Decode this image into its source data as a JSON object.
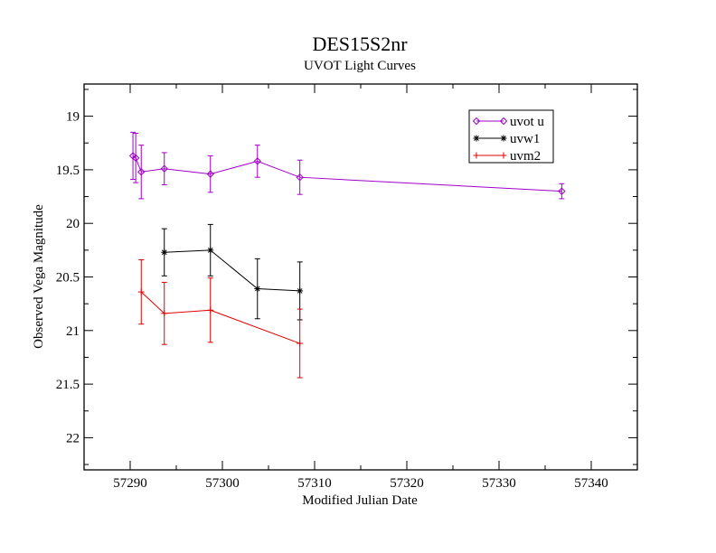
{
  "chart_data": {
    "type": "line",
    "title": "DES15S2nr",
    "subtitle": "UVOT Light Curves",
    "xlabel": "Modified Julian Date",
    "ylabel": "Observed Vega Magnitude",
    "xlim": [
      57285,
      57345
    ],
    "ylim": [
      22.3,
      18.7
    ],
    "y_inverted": true,
    "x_ticks": [
      57290,
      57300,
      57310,
      57320,
      57330,
      57340
    ],
    "y_ticks": [
      19,
      19.5,
      20,
      20.5,
      21,
      21.5,
      22
    ],
    "x_tick_labels": [
      "57290",
      "57300",
      "57310",
      "57320",
      "57330",
      "57340"
    ],
    "y_tick_labels": [
      "19",
      "19.5",
      "20",
      "20.5",
      "21",
      "21.5",
      "22"
    ],
    "grid": false,
    "legend_position": "top-right",
    "series": [
      {
        "name": "uvot u",
        "color": "#a000c8",
        "marker": "diamond",
        "points": [
          {
            "x": 57290.3,
            "y": 19.37,
            "err": 0.22
          },
          {
            "x": 57290.6,
            "y": 19.39,
            "err": 0.23
          },
          {
            "x": 57291.2,
            "y": 19.52,
            "err": 0.25
          },
          {
            "x": 57293.7,
            "y": 19.49,
            "err": 0.15
          },
          {
            "x": 57298.7,
            "y": 19.54,
            "err": 0.17
          },
          {
            "x": 57303.8,
            "y": 19.42,
            "err": 0.15
          },
          {
            "x": 57308.4,
            "y": 19.57,
            "err": 0.16
          },
          {
            "x": 57336.8,
            "y": 19.7,
            "err": 0.07
          }
        ]
      },
      {
        "name": "uvw1",
        "color": "#000000",
        "marker": "asterisk",
        "points": [
          {
            "x": 57293.7,
            "y": 20.27,
            "err": 0.22
          },
          {
            "x": 57298.7,
            "y": 20.25,
            "err": 0.24
          },
          {
            "x": 57303.8,
            "y": 20.61,
            "err": 0.28
          },
          {
            "x": 57308.4,
            "y": 20.63,
            "err": 0.27
          }
        ]
      },
      {
        "name": "uvm2",
        "color": "#e00000",
        "marker": "plus",
        "points": [
          {
            "x": 57291.2,
            "y": 20.64,
            "err": 0.3
          },
          {
            "x": 57293.7,
            "y": 20.84,
            "err": 0.29
          },
          {
            "x": 57298.7,
            "y": 20.81,
            "err": 0.3
          },
          {
            "x": 57308.4,
            "y": 21.12,
            "err": 0.32
          }
        ]
      }
    ]
  }
}
